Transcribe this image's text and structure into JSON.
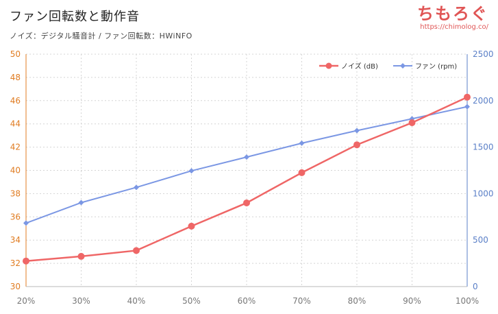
{
  "header": {
    "title": "ファン回転数と動作音",
    "subtitle": "ノイズ：デジタル騒音計 / ファン回転数：HWiNFO"
  },
  "watermark": {
    "logo": "ちもろぐ",
    "url": "https://chimolog.co/"
  },
  "colors": {
    "noise": "#ef6666",
    "fan": "#7b97e4",
    "left_axis": "#e07b20",
    "right_axis": "#5a7fc7",
    "grid": "#d4d4d4"
  },
  "chart_data": {
    "type": "line",
    "title": "ファン回転数と動作音",
    "x": [
      "20%",
      "30%",
      "40%",
      "50%",
      "60%",
      "70%",
      "80%",
      "90%",
      "100%"
    ],
    "series": [
      {
        "name": "ノイズ (dB)",
        "axis": "left",
        "marker": "circle",
        "values": [
          32.2,
          32.6,
          33.1,
          35.2,
          37.2,
          39.8,
          42.2,
          44.1,
          46.3
        ]
      },
      {
        "name": "ファン (rpm)",
        "axis": "right",
        "marker": "diamond",
        "values": [
          683,
          903,
          1067,
          1245,
          1393,
          1542,
          1678,
          1805,
          1935
        ]
      }
    ],
    "y_left": {
      "min": 30,
      "max": 50,
      "step": 2,
      "ticks": [
        "30",
        "32",
        "34",
        "36",
        "38",
        "40",
        "42",
        "44",
        "46",
        "48",
        "50"
      ]
    },
    "y_right": {
      "min": 0,
      "max": 2500,
      "step": 500,
      "ticks": [
        "0",
        "500",
        "1000",
        "1500",
        "2000",
        "2500"
      ]
    },
    "grid": true,
    "legend_position": "top-right"
  }
}
